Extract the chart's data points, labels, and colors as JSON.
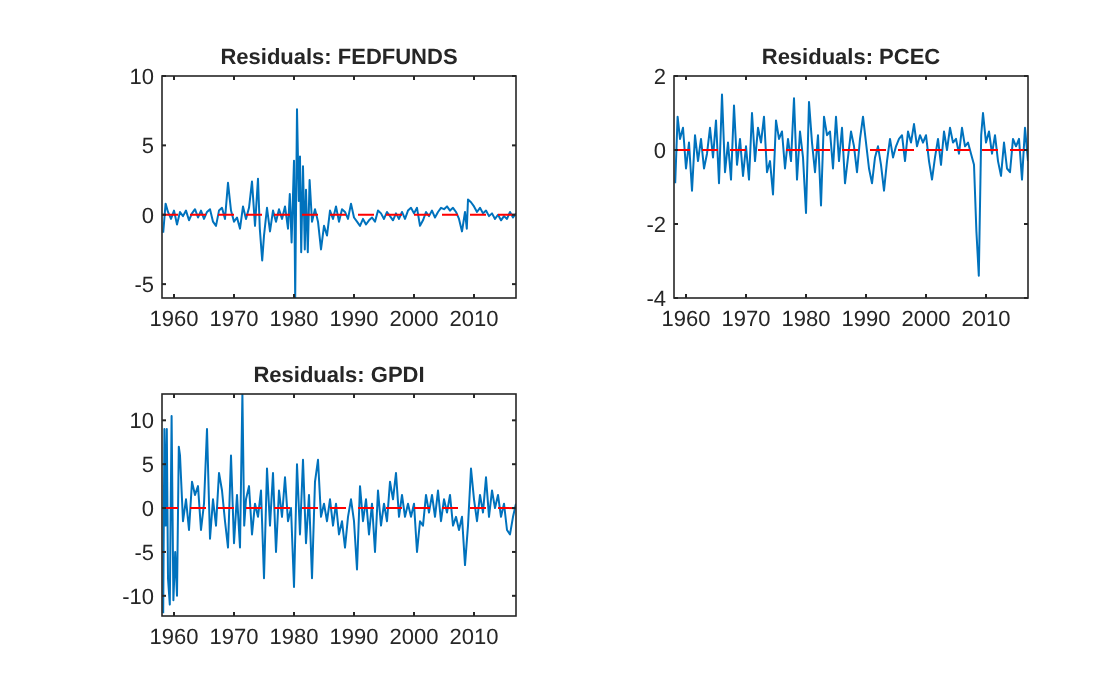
{
  "chart_data": [
    {
      "type": "line",
      "title": "Residuals: FEDFUNDS",
      "xlim": [
        1958,
        2017
      ],
      "ylim": [
        -6,
        10
      ],
      "xticks": [
        1960,
        1970,
        1980,
        1990,
        2000,
        2010
      ],
      "yticks": [
        -5,
        0,
        5,
        10
      ],
      "ref_lines": [
        {
          "axis": "y",
          "value": 0,
          "color": "#ff0000",
          "line_style": "dashed"
        }
      ],
      "series": [
        {
          "color": "#0072bd",
          "line_style": "solid",
          "x": [
            1958.2,
            1958.6,
            1959,
            1959.5,
            1960,
            1960.5,
            1961,
            1961.5,
            1962,
            1962.5,
            1963,
            1963.5,
            1964,
            1964.5,
            1965,
            1965.5,
            1966,
            1966.5,
            1967,
            1967.5,
            1968,
            1968.5,
            1969,
            1969.5,
            1970,
            1970.5,
            1971,
            1971.5,
            1972,
            1972.5,
            1973,
            1973.5,
            1974,
            1974.3,
            1974.7,
            1975,
            1975.5,
            1976,
            1976.5,
            1977,
            1977.5,
            1978,
            1978.5,
            1979,
            1979.3,
            1979.6,
            1980,
            1980.2,
            1980.5,
            1980.8,
            1981,
            1981.2,
            1981.5,
            1981.8,
            1982,
            1982.3,
            1982.6,
            1983,
            1983.5,
            1984,
            1984.5,
            1985,
            1985.5,
            1986,
            1986.5,
            1987,
            1987.5,
            1988,
            1988.5,
            1989,
            1989.5,
            1990,
            1990.5,
            1991,
            1991.5,
            1992,
            1992.5,
            1993,
            1993.5,
            1994,
            1994.5,
            1995,
            1995.5,
            1996,
            1996.5,
            1997,
            1997.5,
            1998,
            1998.5,
            1999,
            1999.5,
            2000,
            2000.5,
            2001,
            2001.5,
            2002,
            2002.5,
            2003,
            2003.5,
            2004,
            2004.5,
            2005,
            2005.5,
            2006,
            2006.5,
            2007,
            2007.5,
            2008,
            2008.5,
            2008.8,
            2009,
            2009.5,
            2010,
            2010.5,
            2011,
            2011.5,
            2012,
            2012.5,
            2013,
            2013.5,
            2014,
            2014.5,
            2015,
            2015.5,
            2016,
            2016.5,
            2017
          ],
          "values": [
            -1.3,
            0.8,
            0.2,
            -0.3,
            0.3,
            -0.7,
            0.2,
            -0.1,
            0.3,
            -0.4,
            0.1,
            0.4,
            -0.2,
            0.3,
            -0.3,
            0.2,
            0.4,
            -0.5,
            -0.8,
            0.3,
            0.5,
            -0.3,
            2.3,
            0.3,
            -0.5,
            -0.2,
            -1.0,
            0.6,
            -0.3,
            0.5,
            2.4,
            -0.8,
            2.6,
            -1.0,
            -3.3,
            -1.5,
            0.5,
            -1.2,
            0.3,
            -0.5,
            0.4,
            -0.3,
            0.6,
            -1.0,
            1.5,
            -2.0,
            3.9,
            -6.0,
            7.6,
            1.0,
            4.2,
            -2.7,
            3.5,
            -2.5,
            1.8,
            -2.7,
            2.5,
            -0.5,
            0.4,
            -0.5,
            -2.5,
            -0.8,
            -1.5,
            0.3,
            -0.3,
            0.6,
            -0.5,
            0.4,
            0.2,
            -0.3,
            0.8,
            -0.2,
            -0.5,
            -0.8,
            -0.3,
            -0.7,
            -0.4,
            -0.2,
            -0.5,
            0.3,
            0.1,
            -0.3,
            0.2,
            -0.1,
            -0.4,
            0.1,
            -0.3,
            0.2,
            -0.3,
            0.3,
            0.5,
            0.1,
            0.5,
            -0.8,
            -0.4,
            0.2,
            -0.1,
            0.3,
            -0.2,
            0.2,
            0.5,
            0.4,
            0.6,
            0.3,
            0.5,
            0.2,
            -0.3,
            -1.2,
            0.2,
            -1.0,
            1.1,
            0.9,
            0.6,
            0.2,
            0.5,
            0.1,
            0.3,
            -0.1,
            0.1,
            -0.3,
            0.0,
            -0.4,
            -0.1,
            -0.3,
            0.2,
            -0.2,
            0.1
          ]
        }
      ]
    },
    {
      "type": "line",
      "title": "Residuals: PCEC",
      "xlim": [
        1958,
        2017
      ],
      "ylim": [
        -4,
        2
      ],
      "xticks": [
        1960,
        1970,
        1980,
        1990,
        2000,
        2010
      ],
      "yticks": [
        -4,
        -2,
        0,
        2
      ],
      "ref_lines": [
        {
          "axis": "y",
          "value": 0,
          "color": "#ff0000",
          "line_style": "dashed"
        }
      ],
      "series": [
        {
          "color": "#0072bd",
          "line_style": "solid",
          "x": [
            1958.2,
            1958.6,
            1959,
            1959.5,
            1960,
            1960.5,
            1961,
            1961.5,
            1962,
            1962.5,
            1963,
            1963.5,
            1964,
            1964.5,
            1965,
            1965.5,
            1966,
            1966.5,
            1967,
            1967.5,
            1968,
            1968.5,
            1969,
            1969.5,
            1970,
            1970.5,
            1971,
            1971.5,
            1972,
            1972.5,
            1973,
            1973.5,
            1974,
            1974.5,
            1975,
            1975.5,
            1976,
            1976.5,
            1977,
            1977.5,
            1978,
            1978.5,
            1979,
            1979.5,
            1980,
            1980.5,
            1981,
            1981.5,
            1982,
            1982.5,
            1983,
            1983.5,
            1984,
            1984.5,
            1985,
            1985.5,
            1986,
            1986.5,
            1987,
            1987.5,
            1988,
            1988.5,
            1989,
            1989.5,
            1990,
            1990.5,
            1991,
            1991.5,
            1992,
            1992.5,
            1993,
            1993.5,
            1994,
            1994.5,
            1995,
            1995.5,
            1996,
            1996.5,
            1997,
            1997.5,
            1998,
            1998.5,
            1999,
            1999.5,
            2000,
            2000.5,
            2001,
            2001.5,
            2002,
            2002.5,
            2003,
            2003.5,
            2004,
            2004.5,
            2005,
            2005.5,
            2006,
            2006.5,
            2007,
            2007.5,
            2008,
            2008.4,
            2008.8,
            2009.2,
            2009.5,
            2010,
            2010.5,
            2011,
            2011.5,
            2012,
            2012.5,
            2013,
            2013.5,
            2014,
            2014.5,
            2015,
            2015.5,
            2016,
            2016.5,
            2017
          ],
          "values": [
            -0.9,
            0.9,
            0.3,
            0.6,
            -0.5,
            0.2,
            -1.1,
            0.4,
            -0.3,
            0.3,
            -0.5,
            -0.1,
            0.6,
            -0.2,
            0.8,
            -0.9,
            1.5,
            -0.6,
            0.2,
            -0.8,
            1.2,
            -0.4,
            0.3,
            -0.7,
            0.1,
            -0.8,
            1.0,
            -0.3,
            0.6,
            0.2,
            0.9,
            -0.6,
            -0.3,
            -1.2,
            0.8,
            0.3,
            0.5,
            -0.5,
            0.3,
            -0.3,
            1.4,
            -0.8,
            0.5,
            -0.2,
            -1.7,
            1.3,
            0.2,
            -0.6,
            0.4,
            -1.5,
            0.9,
            0.4,
            0.5,
            -0.5,
            0.9,
            -0.3,
            0.6,
            -0.9,
            -0.2,
            0.5,
            0.1,
            -0.6,
            0.3,
            0.9,
            0.2,
            -0.5,
            -0.9,
            -0.2,
            0.1,
            -0.4,
            -1.1,
            -0.3,
            0.3,
            -0.2,
            0.1,
            0.3,
            0.4,
            -0.3,
            0.5,
            0.2,
            0.7,
            0.1,
            0.4,
            0.2,
            0.4,
            -0.3,
            -0.8,
            -0.2,
            0.3,
            -0.4,
            0.5,
            0.0,
            0.6,
            0.2,
            0.3,
            -0.1,
            0.6,
            0.1,
            0.2,
            -0.1,
            -0.4,
            -2.2,
            -3.4,
            0.4,
            1.0,
            0.2,
            0.5,
            -0.1,
            0.4,
            -0.3,
            -0.7,
            0.2,
            -0.5,
            -0.6,
            0.3,
            0.1,
            0.3,
            -0.8,
            0.6,
            -0.3
          ]
        }
      ]
    },
    {
      "type": "line",
      "title": "Residuals: GPDI",
      "xlim": [
        1958,
        2017
      ],
      "ylim": [
        -12.3,
        13
      ],
      "xticks": [
        1960,
        1970,
        1980,
        1990,
        2000,
        2010
      ],
      "yticks": [
        -10,
        -5,
        0,
        5,
        10
      ],
      "ref_lines": [
        {
          "axis": "y",
          "value": 0,
          "color": "#ff0000",
          "line_style": "dashed"
        }
      ],
      "series": [
        {
          "color": "#0072bd",
          "line_style": "solid",
          "x": [
            1958.2,
            1958.4,
            1958.6,
            1958.8,
            1959,
            1959.3,
            1959.6,
            1959.9,
            1960.2,
            1960.5,
            1960.8,
            1961,
            1961.5,
            1962,
            1962.5,
            1963,
            1963.5,
            1964,
            1964.5,
            1965,
            1965.5,
            1966,
            1966.5,
            1967,
            1967.5,
            1968,
            1968.5,
            1969,
            1969.5,
            1970,
            1970.5,
            1971,
            1971.4,
            1971.7,
            1972,
            1972.5,
            1973,
            1973.5,
            1974,
            1974.5,
            1975,
            1975.5,
            1976,
            1976.5,
            1977,
            1977.5,
            1978,
            1978.5,
            1979,
            1979.5,
            1980,
            1980.5,
            1981,
            1981.5,
            1982,
            1982.5,
            1983,
            1983.5,
            1984,
            1984.5,
            1985,
            1985.5,
            1986,
            1986.5,
            1987,
            1987.5,
            1988,
            1988.5,
            1989,
            1989.5,
            1990,
            1990.5,
            1991,
            1991.5,
            1992,
            1992.5,
            1993,
            1993.5,
            1994,
            1994.5,
            1995,
            1995.5,
            1996,
            1996.5,
            1997,
            1997.5,
            1998,
            1998.5,
            1999,
            1999.5,
            2000,
            2000.5,
            2001,
            2001.5,
            2002,
            2002.5,
            2003,
            2003.5,
            2004,
            2004.5,
            2005,
            2005.5,
            2006,
            2006.5,
            2007,
            2007.5,
            2008,
            2008.5,
            2009,
            2009.5,
            2010,
            2010.5,
            2011,
            2011.5,
            2012,
            2012.5,
            2013,
            2013.5,
            2014,
            2014.5,
            2015,
            2015.5,
            2016,
            2016.5,
            2017
          ],
          "values": [
            -12.0,
            9,
            -2,
            9,
            -8,
            -11,
            10.5,
            -10.5,
            -5,
            -10,
            7,
            6,
            -1.5,
            1,
            -2.5,
            3,
            1.5,
            2.5,
            -2.5,
            0.5,
            9,
            -3.5,
            1,
            -2,
            4,
            2,
            -1.5,
            -4.5,
            6,
            -4,
            1.5,
            -4.5,
            13,
            -2,
            1,
            2.5,
            -3,
            0.5,
            -1,
            2,
            -8,
            4.5,
            -2,
            4,
            -5,
            2,
            -1,
            3.5,
            -1.5,
            0,
            -9,
            5,
            -3,
            5.5,
            -4,
            1.5,
            -8,
            3,
            5.5,
            -1,
            0.5,
            -1.5,
            1,
            -2,
            0.5,
            -3,
            -1.5,
            -4.5,
            -1,
            1,
            -1.5,
            -7,
            2.5,
            -1.5,
            1,
            -3,
            0.5,
            -5,
            2,
            -2,
            0.5,
            -1.5,
            3,
            1,
            4,
            -1,
            1.5,
            -1,
            0.5,
            -1,
            0.5,
            -5,
            -1.5,
            -2,
            1.5,
            -0.5,
            1.5,
            -1,
            2,
            -1.5,
            1,
            -0.5,
            1.5,
            -2,
            -1,
            -2.5,
            -1,
            -6.5,
            -2,
            4.5,
            1,
            -1.5,
            1.5,
            -0.5,
            3.5,
            -1,
            2,
            0,
            1.5,
            -1,
            0.5,
            -2.5,
            -3,
            -1,
            0.5
          ]
        }
      ]
    }
  ]
}
